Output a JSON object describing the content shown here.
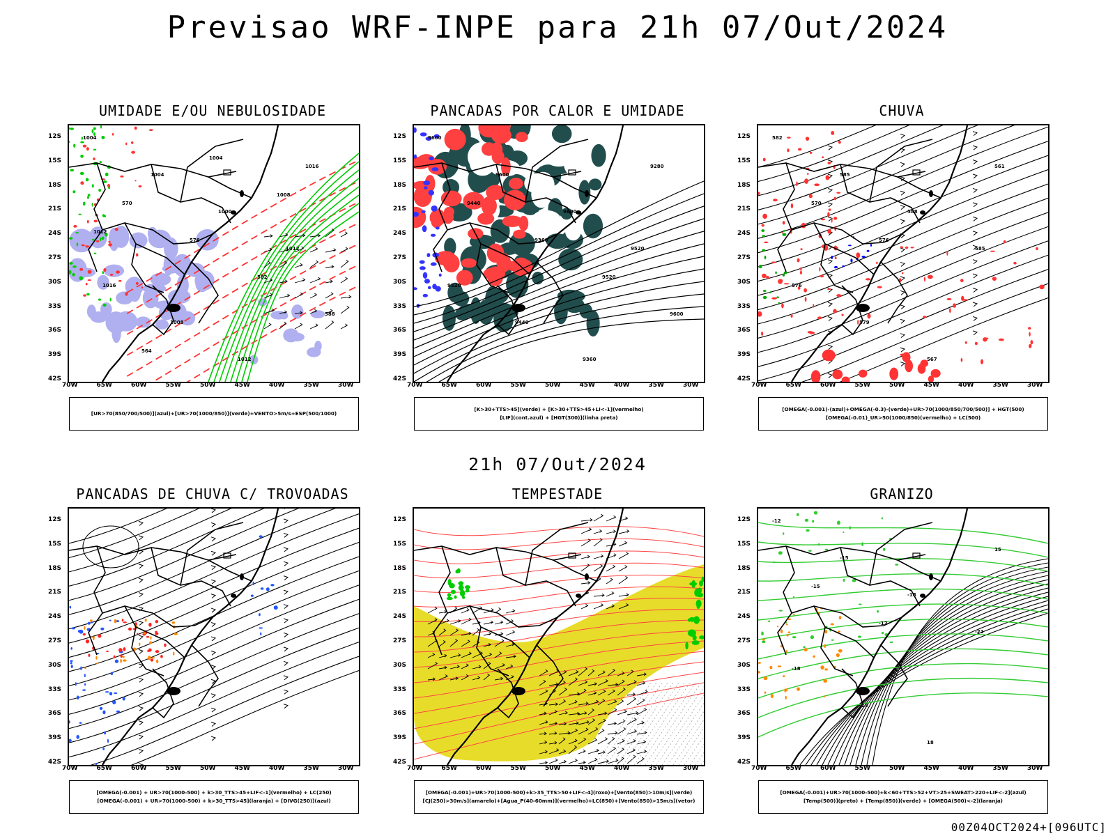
{
  "title": "Previsao WRF-INPE  para 21h 07/Out/2024",
  "subtitle": "21h 07/Out/2024",
  "footer": "00Z04OCT2024+[096UTC]",
  "y_ticks": [
    "12S",
    "15S",
    "18S",
    "21S",
    "24S",
    "27S",
    "30S",
    "33S",
    "36S",
    "39S",
    "42S"
  ],
  "x_ticks": [
    "70W",
    "65W",
    "60W",
    "55W",
    "50W",
    "45W",
    "40W",
    "35W",
    "30W"
  ],
  "panels": [
    {
      "title": "UMIDADE E/OU NEBULOSIDADE",
      "legend": [
        "[UR>70(850/700/500)](azul)+[UR>70(1000/850)](verde)+VENTO>5m/s+ESP(500/1000)"
      ],
      "colors": {
        "blue": "#b0b0f0",
        "green": "#00cc00",
        "red": "#ff3333"
      },
      "contour_labels": [
        "1004",
        "1004",
        "1000",
        "1012",
        "1016",
        "1008",
        "1012",
        "1016",
        "570",
        "576",
        "582",
        "588",
        "564",
        "1004",
        "1008",
        "1012"
      ]
    },
    {
      "title": "PANCADAS POR CALOR E UMIDADE",
      "legend": [
        "[K>30+TTS>45](verde) + [K>30+TTS>45+LI<-1](vermelho)",
        "[LIF](cont.azul) + [HGT(300)](linha preta)"
      ],
      "colors": {
        "teal": "#214d4d",
        "red": "#ff4040",
        "blue": "#3333ff"
      },
      "contour_labels": [
        "9600",
        "9600",
        "9600",
        "9520",
        "9520",
        "9440",
        "9360",
        "9280",
        "9440",
        "9360",
        "9520",
        "9600"
      ]
    },
    {
      "title": "CHUVA",
      "legend": [
        "[OMEGA(-0.001)-(azul)+OMEGA(-0.3)-(verde)+UR>70(1000/850/700/500)] + HGT(500)",
        "[OMEGA(-0.01)_UR>50(1000/850)(vermelho) + LC(500)"
      ],
      "colors": {
        "red": "#ff3333",
        "blue": "#0000ff",
        "green": "#00aa00"
      },
      "contour_labels": [
        "582",
        "585",
        "588",
        "585",
        "576",
        "579",
        "567",
        "561",
        "570",
        "576"
      ]
    },
    {
      "title": "PANCADAS DE CHUVA C/ TROVOADAS",
      "legend": [
        "[OMEGA(-0.001) + UR>70(1000-500) + k>30_TTS>45+LIF<-1](vermelho) + LC(250)",
        "[OMEGA(-0.001) + UR>70(1000-500) + k>30_TTS>45](laranja) + [DIVG(250)](azul)"
      ],
      "colors": {
        "red": "#ff2222",
        "orange": "#ff8800",
        "blue": "#2255ff"
      },
      "contour_labels": []
    },
    {
      "title": "TEMPESTADE",
      "legend": [
        "[OMEGA(-0.001)+UR>70(1000-500)+k>35_TTS>50+LIF<-4](roxo)+[Vento(850)>10m/s](verde)",
        "[CJ(250)>30m/s](amarelo)+[Agua_P(40-60mm)](vermelho)+LC(850)+[Vento(850)>15m/s](vetor)"
      ],
      "colors": {
        "yellow": "#e8dc2a",
        "red": "#ff4444",
        "green": "#00cc00"
      },
      "contour_labels": []
    },
    {
      "title": "GRANIZO",
      "legend": [
        "[OMEGA(-0.001)+UR>70(1000-500)+k<60+TTS>52+VT>25+SWEAT>220+LIF<-2](azul)",
        "[Temp(500)](preto) + [Temp(850)](verde) + [OMEGA(500)<-2](laranja)"
      ],
      "colors": {
        "green": "#33cc33",
        "orange": "#ff8800"
      },
      "contour_labels": [
        "-12",
        "-15",
        "-18",
        "-21",
        "-18",
        "-15",
        "18",
        "15",
        "-15",
        "-12"
      ]
    }
  ]
}
